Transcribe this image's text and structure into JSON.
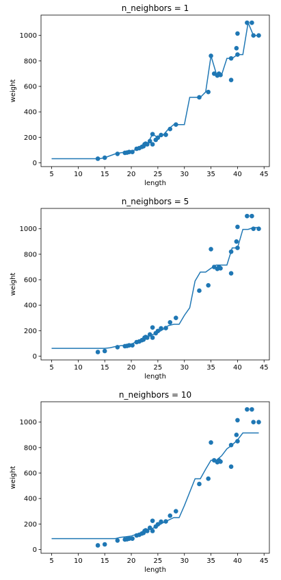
{
  "colors": {
    "series": "#1f77b4",
    "axis": "#000000",
    "background": "#ffffff"
  },
  "chart_data": [
    {
      "type": "scatter",
      "title": "n_neighbors = 1",
      "xlabel": "length",
      "ylabel": "weight",
      "xlim": [
        3.0,
        46.0
      ],
      "ylim": [
        -30,
        1160
      ],
      "xticks": [
        5,
        10,
        15,
        20,
        25,
        30,
        35,
        40,
        45
      ],
      "yticks": [
        0,
        200,
        400,
        600,
        800,
        1000
      ],
      "grid": false,
      "scatter_points": [
        {
          "x": 13.7,
          "y": 32
        },
        {
          "x": 15.0,
          "y": 40
        },
        {
          "x": 17.4,
          "y": 70
        },
        {
          "x": 18.8,
          "y": 78
        },
        {
          "x": 19.2,
          "y": 80
        },
        {
          "x": 19.6,
          "y": 85
        },
        {
          "x": 20.2,
          "y": 85
        },
        {
          "x": 21.0,
          "y": 110
        },
        {
          "x": 21.5,
          "y": 115
        },
        {
          "x": 22.0,
          "y": 125
        },
        {
          "x": 22.3,
          "y": 130
        },
        {
          "x": 22.5,
          "y": 145
        },
        {
          "x": 22.7,
          "y": 150
        },
        {
          "x": 23.0,
          "y": 145
        },
        {
          "x": 23.5,
          "y": 170
        },
        {
          "x": 24.0,
          "y": 225
        },
        {
          "x": 24.0,
          "y": 145
        },
        {
          "x": 24.6,
          "y": 180
        },
        {
          "x": 25.0,
          "y": 197
        },
        {
          "x": 25.6,
          "y": 218
        },
        {
          "x": 26.5,
          "y": 220
        },
        {
          "x": 27.3,
          "y": 265
        },
        {
          "x": 28.4,
          "y": 300
        },
        {
          "x": 32.8,
          "y": 514
        },
        {
          "x": 34.5,
          "y": 556
        },
        {
          "x": 35.0,
          "y": 840
        },
        {
          "x": 35.6,
          "y": 700
        },
        {
          "x": 36.2,
          "y": 685
        },
        {
          "x": 36.5,
          "y": 700
        },
        {
          "x": 36.8,
          "y": 690
        },
        {
          "x": 38.8,
          "y": 820
        },
        {
          "x": 38.8,
          "y": 650
        },
        {
          "x": 39.8,
          "y": 900
        },
        {
          "x": 40.0,
          "y": 850
        },
        {
          "x": 40.0,
          "y": 1015
        },
        {
          "x": 41.8,
          "y": 1100
        },
        {
          "x": 42.7,
          "y": 1100
        },
        {
          "x": 43.0,
          "y": 1000
        },
        {
          "x": 44.0,
          "y": 1000
        }
      ],
      "prediction_line": {
        "x": [
          5,
          14,
          15,
          17,
          18,
          19,
          20,
          21,
          22,
          23,
          24,
          25,
          26,
          27,
          28,
          29,
          30,
          31,
          32,
          33,
          34,
          35,
          36,
          37,
          38,
          39,
          40,
          41,
          42,
          43,
          44
        ],
        "y": [
          32,
          32,
          40,
          70,
          78,
          85,
          85,
          110,
          125,
          145,
          225,
          197,
          218,
          265,
          300,
          300,
          300,
          514,
          514,
          514,
          556,
          840,
          700,
          690,
          820,
          820,
          850,
          850,
          1100,
          1000,
          1000
        ]
      }
    },
    {
      "type": "scatter",
      "title": "n_neighbors = 5",
      "xlabel": "length",
      "ylabel": "weight",
      "xlim": [
        3.0,
        46.0
      ],
      "ylim": [
        -30,
        1160
      ],
      "xticks": [
        5,
        10,
        15,
        20,
        25,
        30,
        35,
        40,
        45
      ],
      "yticks": [
        0,
        200,
        400,
        600,
        800,
        1000
      ],
      "grid": false,
      "scatter_points": [
        {
          "x": 13.7,
          "y": 32
        },
        {
          "x": 15.0,
          "y": 40
        },
        {
          "x": 17.4,
          "y": 70
        },
        {
          "x": 18.8,
          "y": 78
        },
        {
          "x": 19.2,
          "y": 80
        },
        {
          "x": 19.6,
          "y": 85
        },
        {
          "x": 20.2,
          "y": 85
        },
        {
          "x": 21.0,
          "y": 110
        },
        {
          "x": 21.5,
          "y": 115
        },
        {
          "x": 22.0,
          "y": 125
        },
        {
          "x": 22.3,
          "y": 130
        },
        {
          "x": 22.5,
          "y": 145
        },
        {
          "x": 22.7,
          "y": 150
        },
        {
          "x": 23.0,
          "y": 145
        },
        {
          "x": 23.5,
          "y": 170
        },
        {
          "x": 24.0,
          "y": 225
        },
        {
          "x": 24.0,
          "y": 145
        },
        {
          "x": 24.6,
          "y": 180
        },
        {
          "x": 25.0,
          "y": 197
        },
        {
          "x": 25.6,
          "y": 218
        },
        {
          "x": 26.5,
          "y": 220
        },
        {
          "x": 27.3,
          "y": 265
        },
        {
          "x": 28.4,
          "y": 300
        },
        {
          "x": 32.8,
          "y": 514
        },
        {
          "x": 34.5,
          "y": 556
        },
        {
          "x": 35.0,
          "y": 840
        },
        {
          "x": 35.6,
          "y": 700
        },
        {
          "x": 36.2,
          "y": 685
        },
        {
          "x": 36.5,
          "y": 700
        },
        {
          "x": 36.8,
          "y": 690
        },
        {
          "x": 38.8,
          "y": 820
        },
        {
          "x": 38.8,
          "y": 650
        },
        {
          "x": 39.8,
          "y": 900
        },
        {
          "x": 40.0,
          "y": 850
        },
        {
          "x": 40.0,
          "y": 1015
        },
        {
          "x": 41.8,
          "y": 1100
        },
        {
          "x": 42.7,
          "y": 1100
        },
        {
          "x": 43.0,
          "y": 1000
        },
        {
          "x": 44.0,
          "y": 1000
        }
      ],
      "prediction_line": {
        "x": [
          5,
          15,
          16,
          17,
          18,
          19,
          20,
          21,
          22,
          23,
          24,
          25,
          26,
          27,
          28,
          29,
          30,
          31,
          32,
          33,
          34,
          35,
          36,
          37,
          38,
          39,
          40,
          41,
          42,
          43,
          44
        ],
        "y": [
          61,
          61,
          66,
          75,
          82,
          85,
          92,
          115,
          130,
          150,
          168,
          185,
          210,
          240,
          250,
          250,
          320,
          380,
          590,
          660,
          660,
          690,
          715,
          715,
          715,
          850,
          850,
          995,
          995,
          1010,
          1010
        ]
      }
    },
    {
      "type": "scatter",
      "title": "n_neighbors = 10",
      "xlabel": "length",
      "ylabel": "weight",
      "xlim": [
        3.0,
        46.0
      ],
      "ylim": [
        -30,
        1160
      ],
      "xticks": [
        5,
        10,
        15,
        20,
        25,
        30,
        35,
        40,
        45
      ],
      "yticks": [
        0,
        200,
        400,
        600,
        800,
        1000
      ],
      "grid": false,
      "scatter_points": [
        {
          "x": 13.7,
          "y": 32
        },
        {
          "x": 15.0,
          "y": 40
        },
        {
          "x": 17.4,
          "y": 70
        },
        {
          "x": 18.8,
          "y": 78
        },
        {
          "x": 19.2,
          "y": 80
        },
        {
          "x": 19.6,
          "y": 85
        },
        {
          "x": 20.2,
          "y": 85
        },
        {
          "x": 21.0,
          "y": 110
        },
        {
          "x": 21.5,
          "y": 115
        },
        {
          "x": 22.0,
          "y": 125
        },
        {
          "x": 22.3,
          "y": 130
        },
        {
          "x": 22.5,
          "y": 145
        },
        {
          "x": 22.7,
          "y": 150
        },
        {
          "x": 23.0,
          "y": 145
        },
        {
          "x": 23.5,
          "y": 170
        },
        {
          "x": 24.0,
          "y": 225
        },
        {
          "x": 24.0,
          "y": 145
        },
        {
          "x": 24.6,
          "y": 180
        },
        {
          "x": 25.0,
          "y": 197
        },
        {
          "x": 25.6,
          "y": 218
        },
        {
          "x": 26.5,
          "y": 220
        },
        {
          "x": 27.3,
          "y": 265
        },
        {
          "x": 28.4,
          "y": 300
        },
        {
          "x": 32.8,
          "y": 514
        },
        {
          "x": 34.5,
          "y": 556
        },
        {
          "x": 35.0,
          "y": 840
        },
        {
          "x": 35.6,
          "y": 700
        },
        {
          "x": 36.2,
          "y": 685
        },
        {
          "x": 36.5,
          "y": 700
        },
        {
          "x": 36.8,
          "y": 690
        },
        {
          "x": 38.8,
          "y": 820
        },
        {
          "x": 38.8,
          "y": 650
        },
        {
          "x": 39.8,
          "y": 900
        },
        {
          "x": 40.0,
          "y": 850
        },
        {
          "x": 40.0,
          "y": 1015
        },
        {
          "x": 41.8,
          "y": 1100
        },
        {
          "x": 42.7,
          "y": 1100
        },
        {
          "x": 43.0,
          "y": 1000
        },
        {
          "x": 44.0,
          "y": 1000
        }
      ],
      "prediction_line": {
        "x": [
          5,
          17,
          18,
          19,
          20,
          21,
          22,
          23,
          24,
          25,
          26,
          27,
          28,
          29,
          30,
          31,
          32,
          33,
          34,
          35,
          36,
          37,
          38,
          39,
          40,
          41,
          42,
          43,
          44
        ],
        "y": [
          85,
          85,
          95,
          100,
          105,
          120,
          135,
          150,
          165,
          185,
          210,
          230,
          250,
          250,
          345,
          450,
          555,
          555,
          630,
          700,
          700,
          735,
          790,
          820,
          860,
          915,
          915,
          915,
          915
        ]
      }
    }
  ]
}
